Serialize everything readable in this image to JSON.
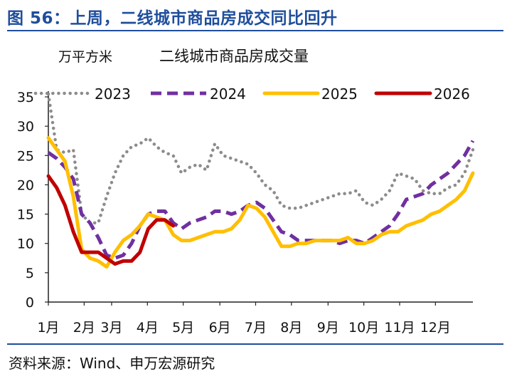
{
  "figure": {
    "title": "图 56：上周，二线城市商品房成交同比回升",
    "source": "资料来源：Wind、申万宏源研究"
  },
  "chart_data": {
    "type": "line",
    "title": "二线城市商品房成交量",
    "ylabel": "万平方米",
    "xlabel": "",
    "ylim": [
      0,
      35
    ],
    "yticks": [
      0,
      5,
      10,
      15,
      20,
      25,
      30,
      35
    ],
    "xlim": [
      1,
      52
    ],
    "xticks": [
      {
        "label": "1月",
        "week": 1
      },
      {
        "label": "2月",
        "week": 5.3
      },
      {
        "label": "3月",
        "week": 8.6
      },
      {
        "label": "4月",
        "week": 12.9
      },
      {
        "label": "5月",
        "week": 17.2
      },
      {
        "label": "6月",
        "week": 21.6
      },
      {
        "label": "7月",
        "week": 25.9
      },
      {
        "label": "8月",
        "week": 30.2
      },
      {
        "label": "9月",
        "week": 34.6
      },
      {
        "label": "10月",
        "week": 38.9
      },
      {
        "label": "11月",
        "week": 43.2
      },
      {
        "label": "12月",
        "week": 47.5
      }
    ],
    "grid": false,
    "legend_position": "top",
    "series": [
      {
        "name": "2023",
        "color": "#8c8c8c",
        "style": "dotted",
        "x": [
          1,
          2,
          3,
          4,
          5,
          6,
          7,
          8,
          9,
          10,
          11,
          12,
          13,
          14,
          15,
          16,
          17,
          18,
          19,
          20,
          21,
          22,
          23,
          24,
          25,
          26,
          27,
          28,
          29,
          30,
          31,
          32,
          33,
          34,
          35,
          36,
          37,
          38,
          39,
          40,
          41,
          42,
          43,
          44,
          45,
          46,
          47,
          48,
          49,
          50,
          51,
          52
        ],
        "y": [
          35.5,
          26,
          25.5,
          26,
          15,
          13.5,
          13.5,
          18,
          22,
          25,
          26.5,
          27,
          28,
          26.5,
          25.5,
          25,
          22,
          23,
          23.5,
          22.5,
          27,
          25,
          24.5,
          24,
          23.5,
          22,
          20,
          19,
          16.5,
          16,
          16,
          16.5,
          17,
          17.5,
          18,
          18.5,
          18.5,
          19,
          17,
          16.5,
          17.5,
          19,
          22,
          21.5,
          21,
          19,
          18.5,
          18.5,
          19.5,
          20,
          22,
          26
        ]
      },
      {
        "name": "2024",
        "color": "#7030a0",
        "style": "dashed",
        "x": [
          1,
          2,
          3,
          4,
          5,
          6,
          7,
          8,
          9,
          10,
          11,
          12,
          13,
          14,
          15,
          16,
          17,
          18,
          19,
          20,
          21,
          22,
          23,
          24,
          25,
          26,
          27,
          28,
          29,
          30,
          31,
          32,
          33,
          34,
          35,
          36,
          37,
          38,
          39,
          40,
          41,
          42,
          43,
          44,
          45,
          46,
          47,
          48,
          49,
          50,
          51,
          52
        ],
        "y": [
          25.5,
          24.5,
          23,
          21,
          15,
          13.5,
          11,
          8,
          7.5,
          8,
          10,
          13,
          15,
          15.5,
          15.5,
          13.5,
          12.5,
          13.5,
          14,
          14.5,
          15.5,
          15.5,
          15,
          15.5,
          16.5,
          17,
          16,
          14,
          12,
          11.5,
          10.5,
          10.5,
          10.5,
          10.5,
          10.5,
          10,
          10.5,
          10.5,
          10,
          11,
          12,
          13,
          15,
          17.5,
          18,
          18.5,
          20,
          21,
          22,
          23.5,
          25,
          27.5
        ]
      },
      {
        "name": "2025",
        "color": "#ffbf00",
        "style": "solid",
        "x": [
          1,
          2,
          3,
          4,
          5,
          6,
          7,
          8,
          9,
          10,
          11,
          12,
          13,
          14,
          15,
          16,
          17,
          18,
          19,
          20,
          21,
          22,
          23,
          24,
          25,
          26,
          27,
          28,
          29,
          30,
          31,
          32,
          33,
          34,
          35,
          36,
          37,
          38,
          39,
          40,
          41,
          42,
          43,
          44,
          45,
          46,
          47,
          48,
          49,
          50,
          51,
          52
        ],
        "y": [
          28,
          26,
          24,
          18,
          9,
          7.5,
          7,
          6,
          8.5,
          10.5,
          11.5,
          13,
          15,
          14.5,
          14,
          11.5,
          10.5,
          10.5,
          11,
          11.5,
          12,
          12,
          12.5,
          14,
          16.5,
          16,
          14.5,
          12,
          9.5,
          9.5,
          10,
          10,
          10.5,
          10.5,
          10.5,
          10.5,
          11,
          10,
          10,
          10.5,
          11.5,
          12,
          12,
          13,
          13.5,
          14,
          15,
          15.5,
          16.5,
          17.5,
          19,
          22
        ]
      },
      {
        "name": "2026",
        "color": "#c00000",
        "style": "solid",
        "x": [
          1,
          2,
          3,
          4,
          5,
          6,
          7,
          8,
          9,
          10,
          11,
          12,
          13,
          14,
          15,
          16
        ],
        "y": [
          21.5,
          19.5,
          16.5,
          12,
          8.5,
          8.5,
          8.5,
          7.5,
          6.5,
          7,
          7,
          8.5,
          12.5,
          14,
          14,
          13
        ]
      }
    ]
  }
}
